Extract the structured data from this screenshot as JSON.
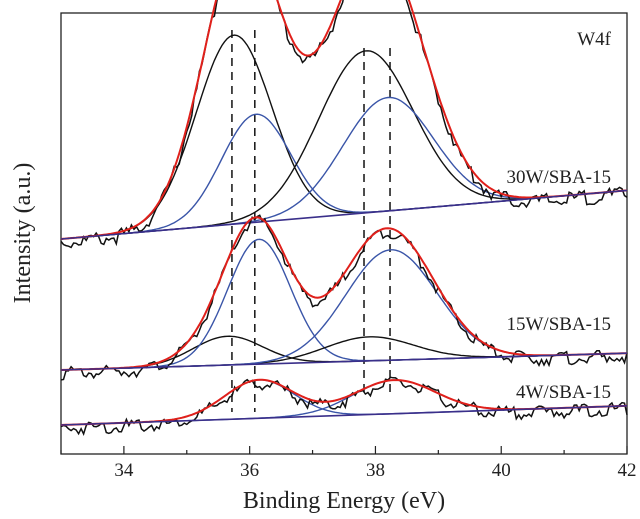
{
  "chart_data": {
    "type": "line",
    "title": "",
    "xlabel": "Binding Energy (eV)",
    "ylabel": "Intensity (a.u.)",
    "xlim": [
      33,
      42
    ],
    "xticks": [
      34,
      36,
      38,
      40,
      42
    ],
    "yticks_shown": false,
    "grid": false,
    "legend": "none",
    "colors": {
      "measured": "#111111",
      "envelope": "#e0201b",
      "component_black": "#111111",
      "component_blue": "#3a55a8",
      "background": "#3a2f8a",
      "reference_lines": "#111111"
    },
    "annotations": [
      "W4f"
    ],
    "reference_lines_ev": [
      35.75,
      36.05,
      37.85,
      38.2
    ],
    "samples": [
      {
        "name": "30W/SBA-15",
        "background": {
          "x": [
            33,
            42
          ],
          "y": [
            0.0,
            0.09
          ]
        },
        "components": [
          {
            "color": "black",
            "center": 35.75,
            "height": 0.35,
            "sigma": 0.6
          },
          {
            "color": "blue",
            "center": 36.1,
            "height": 0.2,
            "sigma": 0.55
          },
          {
            "color": "black",
            "center": 37.85,
            "height": 0.3,
            "sigma": 0.75
          },
          {
            "color": "blue",
            "center": 38.2,
            "height": 0.21,
            "sigma": 0.72
          }
        ]
      },
      {
        "name": "15W/SBA-15",
        "background": {
          "x": [
            33,
            42
          ],
          "y": [
            0.0,
            0.035
          ]
        },
        "components": [
          {
            "color": "black",
            "center": 35.65,
            "height": 0.06,
            "sigma": 0.55
          },
          {
            "color": "blue",
            "center": 36.15,
            "height": 0.26,
            "sigma": 0.5
          },
          {
            "color": "black",
            "center": 37.9,
            "height": 0.05,
            "sigma": 0.7
          },
          {
            "color": "blue",
            "center": 38.25,
            "height": 0.23,
            "sigma": 0.72
          }
        ]
      },
      {
        "name": "4W/SBA-15",
        "background": {
          "x": [
            33,
            42
          ],
          "y": [
            0.0,
            0.04
          ]
        },
        "components": [
          {
            "color": "blue",
            "center": 36.15,
            "height": 0.08,
            "sigma": 0.55
          },
          {
            "color": "blue",
            "center": 38.3,
            "height": 0.07,
            "sigma": 0.65
          }
        ]
      }
    ]
  }
}
